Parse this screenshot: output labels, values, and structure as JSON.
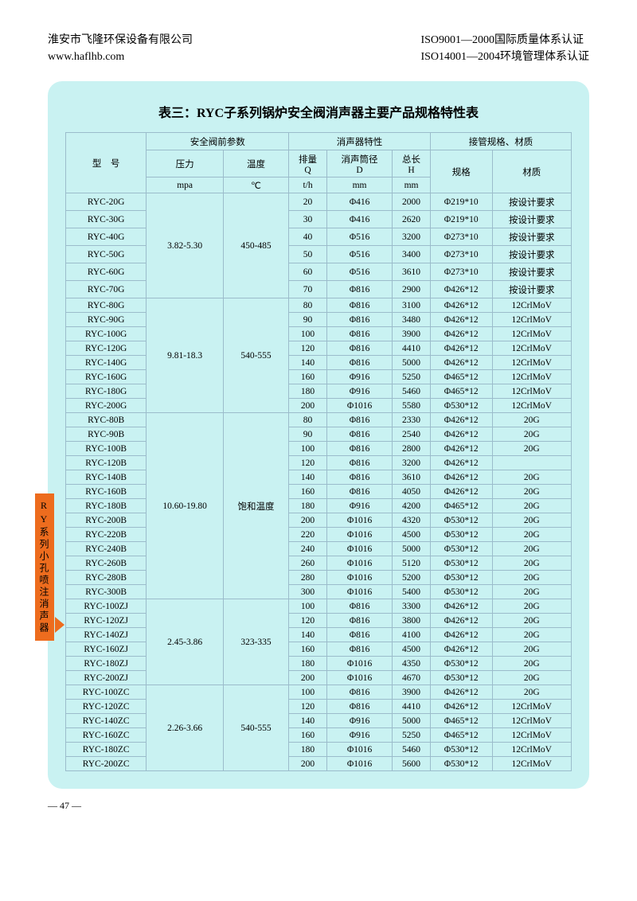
{
  "header": {
    "company": "淮安市飞隆环保设备有限公司",
    "website": "www.haflhb.com",
    "cert1": "ISO9001—2000国际质量体系认证",
    "cert2": "ISO14001—2004环境管理体系认证"
  },
  "title": "表三：RYC子系列锅炉安全阀消声器主要产品规格特性表",
  "side_tab": "RY系列小孔喷注消声器",
  "page_number": "— 47 —",
  "cols": {
    "group_valve": "安全阀前参数",
    "group_silencer": "消声器特性",
    "group_pipe": "接管规格、材质",
    "model": "型　号",
    "pressure": "压力",
    "temp": "温度",
    "flow": "排量",
    "flow_sub": "Q",
    "dia": "消声筒径",
    "dia_sub": "D",
    "len": "总长",
    "len_sub": "H",
    "spec": "规格",
    "material": "材质",
    "unit_pressure": "mpa",
    "unit_temp": "℃",
    "unit_flow": "t/h",
    "unit_dia": "mm",
    "unit_len": "mm"
  },
  "groups": [
    {
      "pressure": "3.82-5.30",
      "temp": "450-485",
      "rows": [
        {
          "model": "RYC-20G",
          "q": "20",
          "d": "Φ416",
          "h": "2000",
          "spec": "Φ219*10",
          "mat": "按设计要求"
        },
        {
          "model": "RYC-30G",
          "q": "30",
          "d": "Φ416",
          "h": "2620",
          "spec": "Φ219*10",
          "mat": "按设计要求"
        },
        {
          "model": "RYC-40G",
          "q": "40",
          "d": "Φ516",
          "h": "3200",
          "spec": "Φ273*10",
          "mat": "按设计要求"
        },
        {
          "model": "RYC-50G",
          "q": "50",
          "d": "Φ516",
          "h": "3400",
          "spec": "Φ273*10",
          "mat": "按设计要求"
        },
        {
          "model": "RYC-60G",
          "q": "60",
          "d": "Φ516",
          "h": "3610",
          "spec": "Φ273*10",
          "mat": "按设计要求"
        },
        {
          "model": "RYC-70G",
          "q": "70",
          "d": "Φ816",
          "h": "2900",
          "spec": "Φ426*12",
          "mat": "按设计要求"
        }
      ]
    },
    {
      "pressure": "9.81-18.3",
      "temp": "540-555",
      "rows": [
        {
          "model": "RYC-80G",
          "q": "80",
          "d": "Φ816",
          "h": "3100",
          "spec": "Φ426*12",
          "mat": "12CrlMoV"
        },
        {
          "model": "RYC-90G",
          "q": "90",
          "d": "Φ816",
          "h": "3480",
          "spec": "Φ426*12",
          "mat": "12CrlMoV"
        },
        {
          "model": "RYC-100G",
          "q": "100",
          "d": "Φ816",
          "h": "3900",
          "spec": "Φ426*12",
          "mat": "12CrlMoV"
        },
        {
          "model": "RYC-120G",
          "q": "120",
          "d": "Φ816",
          "h": "4410",
          "spec": "Φ426*12",
          "mat": "12CrlMoV"
        },
        {
          "model": "RYC-140G",
          "q": "140",
          "d": "Φ816",
          "h": "5000",
          "spec": "Φ426*12",
          "mat": "12CrlMoV"
        },
        {
          "model": "RYC-160G",
          "q": "160",
          "d": "Φ916",
          "h": "5250",
          "spec": "Φ465*12",
          "mat": "12CrlMoV"
        },
        {
          "model": "RYC-180G",
          "q": "180",
          "d": "Φ916",
          "h": "5460",
          "spec": "Φ465*12",
          "mat": "12CrlMoV"
        },
        {
          "model": "RYC-200G",
          "q": "200",
          "d": "Φ1016",
          "h": "5580",
          "spec": "Φ530*12",
          "mat": "12CrlMoV"
        }
      ]
    },
    {
      "pressure": "10.60-19.80",
      "temp": "饱和温度",
      "rows": [
        {
          "model": "RYC-80B",
          "q": "80",
          "d": "Φ816",
          "h": "2330",
          "spec": "Φ426*12",
          "mat": "20G"
        },
        {
          "model": "RYC-90B",
          "q": "90",
          "d": "Φ816",
          "h": "2540",
          "spec": "Φ426*12",
          "mat": "20G"
        },
        {
          "model": "RYC-100B",
          "q": "100",
          "d": "Φ816",
          "h": "2800",
          "spec": "Φ426*12",
          "mat": "20G"
        },
        {
          "model": "RYC-120B",
          "q": "120",
          "d": "Φ816",
          "h": "3200",
          "spec": "Φ426*12",
          "mat": ""
        },
        {
          "model": "RYC-140B",
          "q": "140",
          "d": "Φ816",
          "h": "3610",
          "spec": "Φ426*12",
          "mat": "20G"
        },
        {
          "model": "RYC-160B",
          "q": "160",
          "d": "Φ816",
          "h": "4050",
          "spec": "Φ426*12",
          "mat": "20G"
        },
        {
          "model": "RYC-180B",
          "q": "180",
          "d": "Φ916",
          "h": "4200",
          "spec": "Φ465*12",
          "mat": "20G"
        },
        {
          "model": "RYC-200B",
          "q": "200",
          "d": "Φ1016",
          "h": "4320",
          "spec": "Φ530*12",
          "mat": "20G"
        },
        {
          "model": "RYC-220B",
          "q": "220",
          "d": "Φ1016",
          "h": "4500",
          "spec": "Φ530*12",
          "mat": "20G"
        },
        {
          "model": "RYC-240B",
          "q": "240",
          "d": "Φ1016",
          "h": "5000",
          "spec": "Φ530*12",
          "mat": "20G"
        },
        {
          "model": "RYC-260B",
          "q": "260",
          "d": "Φ1016",
          "h": "5120",
          "spec": "Φ530*12",
          "mat": "20G"
        },
        {
          "model": "RYC-280B",
          "q": "280",
          "d": "Φ1016",
          "h": "5200",
          "spec": "Φ530*12",
          "mat": "20G"
        },
        {
          "model": "RYC-300B",
          "q": "300",
          "d": "Φ1016",
          "h": "5400",
          "spec": "Φ530*12",
          "mat": "20G"
        }
      ]
    },
    {
      "pressure": "2.45-3.86",
      "temp": "323-335",
      "rows": [
        {
          "model": "RYC-100ZJ",
          "q": "100",
          "d": "Φ816",
          "h": "3300",
          "spec": "Φ426*12",
          "mat": "20G"
        },
        {
          "model": "RYC-120ZJ",
          "q": "120",
          "d": "Φ816",
          "h": "3800",
          "spec": "Φ426*12",
          "mat": "20G"
        },
        {
          "model": "RYC-140ZJ",
          "q": "140",
          "d": "Φ816",
          "h": "4100",
          "spec": "Φ426*12",
          "mat": "20G"
        },
        {
          "model": "RYC-160ZJ",
          "q": "160",
          "d": "Φ816",
          "h": "4500",
          "spec": "Φ426*12",
          "mat": "20G"
        },
        {
          "model": "RYC-180ZJ",
          "q": "180",
          "d": "Φ1016",
          "h": "4350",
          "spec": "Φ530*12",
          "mat": "20G"
        },
        {
          "model": "RYC-200ZJ",
          "q": "200",
          "d": "Φ1016",
          "h": "4670",
          "spec": "Φ530*12",
          "mat": "20G"
        }
      ]
    },
    {
      "pressure": "2.26-3.66",
      "temp": "540-555",
      "rows": [
        {
          "model": "RYC-100ZC",
          "q": "100",
          "d": "Φ816",
          "h": "3900",
          "spec": "Φ426*12",
          "mat": "20G"
        },
        {
          "model": "RYC-120ZC",
          "q": "120",
          "d": "Φ816",
          "h": "4410",
          "spec": "Φ426*12",
          "mat": "12CrlMoV"
        },
        {
          "model": "RYC-140ZC",
          "q": "140",
          "d": "Φ916",
          "h": "5000",
          "spec": "Φ465*12",
          "mat": "12CrlMoV"
        },
        {
          "model": "RYC-160ZC",
          "q": "160",
          "d": "Φ916",
          "h": "5250",
          "spec": "Φ465*12",
          "mat": "12CrlMoV"
        },
        {
          "model": "RYC-180ZC",
          "q": "180",
          "d": "Φ1016",
          "h": "5460",
          "spec": "Φ530*12",
          "mat": "12CrlMoV"
        },
        {
          "model": "RYC-200ZC",
          "q": "200",
          "d": "Φ1016",
          "h": "5600",
          "spec": "Φ530*12",
          "mat": "12CrlMoV"
        }
      ]
    }
  ]
}
